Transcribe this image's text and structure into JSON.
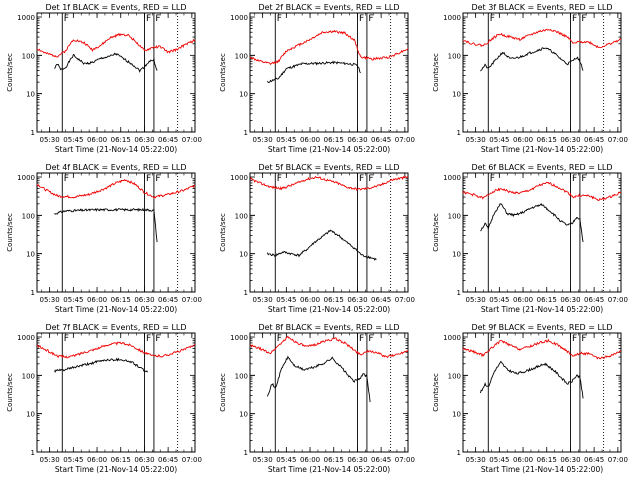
{
  "chart_data": [
    {
      "type": "line",
      "title": "Det 1f BLACK = Events, RED = LLD",
      "flag": "F",
      "xlabel": "Start Time (21-Nov-14 05:22:00)",
      "ylabel": "Counts/sec",
      "x_ticks": [
        "05:30",
        "05:45",
        "06:00",
        "06:15",
        "06:30",
        "06:45",
        "07:00"
      ],
      "y_ticks": [
        "1",
        "10",
        "100",
        "1000"
      ],
      "ylim": [
        1,
        1000
      ],
      "xlim": [
        "05:22",
        "07:02"
      ],
      "solid_markers": [
        "05:38",
        "06:30",
        "06:36"
      ],
      "dotted_markers": [
        "06:51"
      ],
      "series": [
        {
          "name": "Events",
          "color": "#000000",
          "x": [
            "05:33",
            "05:35",
            "05:37",
            "05:40",
            "05:45",
            "05:52",
            "05:57",
            "06:03",
            "06:07",
            "06:12",
            "06:17",
            "06:22",
            "06:27",
            "06:30",
            "06:33",
            "06:36",
            "06:38"
          ],
          "values": [
            45,
            60,
            42,
            48,
            100,
            60,
            65,
            85,
            90,
            110,
            80,
            60,
            40,
            50,
            70,
            75,
            40
          ]
        },
        {
          "name": "LLD",
          "color": "#ee0000",
          "x": [
            "05:22",
            "05:28",
            "05:35",
            "05:40",
            "05:45",
            "05:52",
            "05:57",
            "06:03",
            "06:08",
            "06:15",
            "06:20",
            "06:25",
            "06:30",
            "06:35",
            "06:40",
            "06:45",
            "06:50",
            "06:57",
            "07:02"
          ],
          "values": [
            150,
            110,
            95,
            130,
            260,
            210,
            140,
            190,
            280,
            360,
            330,
            220,
            130,
            160,
            170,
            120,
            140,
            200,
            250
          ]
        }
      ]
    },
    {
      "type": "line",
      "title": "Det 2f BLACK = Events, RED = LLD",
      "flag": "F",
      "xlabel": "Start Time (21-Nov-14 05:22:00)",
      "ylabel": "Counts/sec",
      "x_ticks": [
        "05:30",
        "05:45",
        "06:00",
        "06:15",
        "06:30",
        "06:45",
        "07:00"
      ],
      "y_ticks": [
        "1",
        "10",
        "100",
        "1000"
      ],
      "ylim": [
        1,
        1000
      ],
      "xlim": [
        "05:22",
        "07:02"
      ],
      "solid_markers": [
        "05:38",
        "06:30",
        "06:36"
      ],
      "dotted_markers": [
        "06:51"
      ],
      "series": [
        {
          "name": "Events",
          "color": "#000000",
          "x": [
            "05:33",
            "05:40",
            "05:45",
            "05:55",
            "06:05",
            "06:15",
            "06:25",
            "06:30",
            "06:32"
          ],
          "values": [
            20,
            25,
            45,
            60,
            62,
            65,
            60,
            55,
            35
          ]
        },
        {
          "name": "LLD",
          "color": "#ee0000",
          "x": [
            "05:22",
            "05:28",
            "05:35",
            "05:40",
            "05:45",
            "05:52",
            "06:00",
            "06:08",
            "06:15",
            "06:22",
            "06:28",
            "06:32",
            "06:40",
            "06:50",
            "06:57",
            "07:02"
          ],
          "values": [
            90,
            70,
            60,
            70,
            130,
            180,
            260,
            400,
            420,
            380,
            250,
            90,
            80,
            90,
            120,
            150
          ]
        }
      ]
    },
    {
      "type": "line",
      "title": "Det 3f BLACK = Events, RED = LLD",
      "flag": "F",
      "xlabel": "Start Time (21-Nov-14 05:22:00)",
      "ylabel": "Counts/sec",
      "x_ticks": [
        "05:30",
        "05:45",
        "06:00",
        "06:15",
        "06:30",
        "06:45",
        "07:00"
      ],
      "y_ticks": [
        "1",
        "10",
        "100",
        "1000"
      ],
      "ylim": [
        1,
        1000
      ],
      "xlim": [
        "05:22",
        "07:02"
      ],
      "solid_markers": [
        "05:38",
        "06:30",
        "06:36"
      ],
      "dotted_markers": [
        "06:51"
      ],
      "series": [
        {
          "name": "Events",
          "color": "#000000",
          "x": [
            "05:33",
            "05:36",
            "05:38",
            "05:42",
            "05:47",
            "05:52",
            "05:58",
            "06:03",
            "06:08",
            "06:14",
            "06:19",
            "06:24",
            "06:28",
            "06:31",
            "06:34",
            "06:36",
            "06:38"
          ],
          "values": [
            40,
            55,
            45,
            70,
            120,
            80,
            90,
            110,
            130,
            160,
            120,
            80,
            60,
            70,
            90,
            70,
            40
          ]
        },
        {
          "name": "LLD",
          "color": "#ee0000",
          "x": [
            "05:22",
            "05:28",
            "05:35",
            "05:40",
            "05:45",
            "05:52",
            "05:58",
            "06:03",
            "06:10",
            "06:17",
            "06:22",
            "06:28",
            "06:32",
            "06:36",
            "06:42",
            "06:48",
            "06:55",
            "07:02"
          ],
          "values": [
            250,
            200,
            180,
            260,
            360,
            300,
            260,
            320,
            420,
            480,
            400,
            300,
            200,
            230,
            220,
            160,
            200,
            260
          ]
        }
      ]
    },
    {
      "type": "line",
      "title": "Det 4f BLACK = Events, RED = LLD",
      "flag": "F",
      "xlabel": "Start Time (21-Nov-14 05:22:00)",
      "ylabel": "Counts/sec",
      "x_ticks": [
        "05:30",
        "05:45",
        "06:00",
        "06:15",
        "06:30",
        "06:45",
        "07:00"
      ],
      "y_ticks": [
        "1",
        "10",
        "100",
        "1000"
      ],
      "ylim": [
        1,
        1000
      ],
      "xlim": [
        "05:22",
        "07:02"
      ],
      "solid_markers": [
        "05:38",
        "06:30",
        "06:36"
      ],
      "dotted_markers": [
        "06:51"
      ],
      "series": [
        {
          "name": "Events",
          "color": "#000000",
          "x": [
            "05:33",
            "05:40",
            "05:50",
            "06:00",
            "06:10",
            "06:20",
            "06:30",
            "06:36",
            "06:38"
          ],
          "values": [
            110,
            130,
            135,
            140,
            140,
            140,
            140,
            135,
            20
          ]
        },
        {
          "name": "LLD",
          "color": "#ee0000",
          "x": [
            "05:22",
            "05:28",
            "05:35",
            "05:45",
            "05:55",
            "06:05",
            "06:12",
            "06:18",
            "06:24",
            "06:30",
            "06:36",
            "06:45",
            "06:55",
            "07:02"
          ],
          "values": [
            650,
            450,
            320,
            300,
            350,
            500,
            700,
            850,
            650,
            400,
            300,
            350,
            450,
            600
          ]
        }
      ]
    },
    {
      "type": "line",
      "title": "Det 5f BLACK = Events, RED = LLD",
      "flag": "F",
      "xlabel": "Start Time (21-Nov-14 05:22:00)",
      "ylabel": "Counts/sec",
      "x_ticks": [
        "05:30",
        "05:45",
        "06:00",
        "06:15",
        "06:30",
        "06:45",
        "07:00"
      ],
      "y_ticks": [
        "1",
        "10",
        "100",
        "1000"
      ],
      "ylim": [
        1,
        1000
      ],
      "xlim": [
        "05:22",
        "07:02"
      ],
      "solid_markers": [
        "05:38",
        "06:30",
        "06:36"
      ],
      "dotted_markers": [
        "06:51"
      ],
      "series": [
        {
          "name": "Events",
          "color": "#000000",
          "x": [
            "05:33",
            "05:38",
            "05:43",
            "05:48",
            "05:53",
            "05:58",
            "06:03",
            "06:08",
            "06:13",
            "06:18",
            "06:23",
            "06:28",
            "06:33",
            "06:38",
            "06:42"
          ],
          "values": [
            10,
            9,
            11,
            10,
            9,
            13,
            20,
            28,
            40,
            30,
            20,
            14,
            9,
            8,
            7
          ]
        },
        {
          "name": "LLD",
          "color": "#ee0000",
          "x": [
            "05:22",
            "05:28",
            "05:35",
            "05:42",
            "05:50",
            "05:57",
            "06:04",
            "06:10",
            "06:17",
            "06:23",
            "06:30",
            "06:36",
            "06:44",
            "06:52",
            "07:02"
          ],
          "values": [
            900,
            700,
            550,
            500,
            650,
            850,
            1000,
            850,
            700,
            550,
            480,
            500,
            600,
            850,
            1000
          ]
        }
      ]
    },
    {
      "type": "line",
      "title": "Det 6f BLACK = Events, RED = LLD",
      "flag": "F",
      "xlabel": "Start Time (21-Nov-14 05:22:00)",
      "ylabel": "Counts/sec",
      "x_ticks": [
        "05:30",
        "05:45",
        "06:00",
        "06:15",
        "06:30",
        "06:45",
        "07:00"
      ],
      "y_ticks": [
        "1",
        "10",
        "100",
        "1000"
      ],
      "ylim": [
        1,
        1000
      ],
      "xlim": [
        "05:22",
        "07:02"
      ],
      "solid_markers": [
        "05:38",
        "06:30",
        "06:36"
      ],
      "dotted_markers": [
        "06:51"
      ],
      "series": [
        {
          "name": "Events",
          "color": "#000000",
          "x": [
            "05:33",
            "05:36",
            "05:38",
            "05:42",
            "05:46",
            "05:50",
            "05:55",
            "06:00",
            "06:06",
            "06:12",
            "06:18",
            "06:24",
            "06:28",
            "06:31",
            "06:34",
            "06:36",
            "06:38"
          ],
          "values": [
            40,
            60,
            45,
            120,
            200,
            110,
            100,
            120,
            160,
            190,
            120,
            70,
            55,
            60,
            90,
            80,
            20
          ]
        },
        {
          "name": "LLD",
          "color": "#ee0000",
          "x": [
            "05:22",
            "05:28",
            "05:35",
            "05:40",
            "05:46",
            "05:52",
            "05:58",
            "06:04",
            "06:10",
            "06:16",
            "06:22",
            "06:28",
            "06:32",
            "06:36",
            "06:42",
            "06:48",
            "06:55",
            "07:02"
          ],
          "values": [
            400,
            350,
            280,
            400,
            500,
            400,
            380,
            450,
            600,
            700,
            550,
            400,
            300,
            330,
            320,
            250,
            300,
            400
          ]
        }
      ]
    },
    {
      "type": "line",
      "title": "Det 7f BLACK = Events, RED = LLD",
      "flag": "F",
      "xlabel": "Start Time (21-Nov-14 05:22:00)",
      "ylabel": "Counts/sec",
      "x_ticks": [
        "05:30",
        "05:45",
        "06:00",
        "06:15",
        "06:30",
        "06:45",
        "07:00"
      ],
      "y_ticks": [
        "1",
        "10",
        "100",
        "1000"
      ],
      "ylim": [
        1,
        1000
      ],
      "xlim": [
        "05:22",
        "07:02"
      ],
      "solid_markers": [
        "05:38",
        "06:30",
        "06:36"
      ],
      "dotted_markers": [
        "06:51"
      ],
      "series": [
        {
          "name": "Events",
          "color": "#000000",
          "x": [
            "05:33",
            "05:40",
            "05:45",
            "05:55",
            "06:05",
            "06:15",
            "06:22",
            "06:28",
            "06:32"
          ],
          "values": [
            130,
            140,
            160,
            200,
            250,
            260,
            220,
            150,
            120
          ]
        },
        {
          "name": "LLD",
          "color": "#ee0000",
          "x": [
            "05:22",
            "05:28",
            "05:35",
            "05:40",
            "05:45",
            "05:52",
            "06:00",
            "06:08",
            "06:15",
            "06:22",
            "06:28",
            "06:35",
            "06:42",
            "06:50",
            "06:57",
            "07:02"
          ],
          "values": [
            600,
            450,
            320,
            300,
            320,
            400,
            500,
            650,
            700,
            600,
            430,
            320,
            320,
            400,
            500,
            650
          ]
        }
      ]
    },
    {
      "type": "line",
      "title": "Det 8f BLACK = Events, RED = LLD",
      "flag": "F",
      "xlabel": "Start Time (21-Nov-14 05:22:00)",
      "ylabel": "Counts/sec",
      "x_ticks": [
        "05:30",
        "05:45",
        "06:00",
        "06:15",
        "06:30",
        "06:45",
        "07:00"
      ],
      "y_ticks": [
        "1",
        "10",
        "100",
        "1000"
      ],
      "ylim": [
        1,
        1000
      ],
      "xlim": [
        "05:22",
        "07:02"
      ],
      "solid_markers": [
        "05:38",
        "06:30",
        "06:36"
      ],
      "dotted_markers": [
        "06:51"
      ],
      "series": [
        {
          "name": "Events",
          "color": "#000000",
          "x": [
            "05:33",
            "05:36",
            "05:38",
            "05:42",
            "05:46",
            "05:50",
            "05:56",
            "06:02",
            "06:08",
            "06:14",
            "06:20",
            "06:25",
            "06:28",
            "06:31",
            "06:34",
            "06:36",
            "06:38"
          ],
          "values": [
            30,
            60,
            45,
            150,
            300,
            180,
            140,
            160,
            200,
            280,
            160,
            90,
            70,
            80,
            110,
            90,
            20
          ]
        },
        {
          "name": "LLD",
          "color": "#ee0000",
          "x": [
            "05:22",
            "05:28",
            "05:35",
            "05:40",
            "05:46",
            "05:52",
            "05:58",
            "06:04",
            "06:10",
            "06:16",
            "06:22",
            "06:28",
            "06:32",
            "06:36",
            "06:42",
            "06:48",
            "06:55",
            "07:02"
          ],
          "values": [
            600,
            500,
            380,
            600,
            1000,
            700,
            550,
            650,
            800,
            900,
            700,
            450,
            350,
            420,
            400,
            300,
            350,
            450
          ]
        }
      ]
    },
    {
      "type": "line",
      "title": "Det 9f BLACK = Events, RED = LLD",
      "flag": "F",
      "xlabel": "Start Time (21-Nov-14 05:22:00)",
      "ylabel": "Counts/sec",
      "x_ticks": [
        "05:30",
        "05:45",
        "06:00",
        "06:15",
        "06:30",
        "06:45",
        "07:00"
      ],
      "y_ticks": [
        "1",
        "10",
        "100",
        "1000"
      ],
      "ylim": [
        1,
        1000
      ],
      "xlim": [
        "05:22",
        "07:02"
      ],
      "solid_markers": [
        "05:38",
        "06:30",
        "06:36"
      ],
      "dotted_markers": [
        "06:51"
      ],
      "series": [
        {
          "name": "Events",
          "color": "#000000",
          "x": [
            "05:33",
            "05:36",
            "05:38",
            "05:42",
            "05:46",
            "05:50",
            "05:56",
            "06:02",
            "06:08",
            "06:14",
            "06:20",
            "06:25",
            "06:28",
            "06:31",
            "06:34",
            "06:36",
            "06:38"
          ],
          "values": [
            35,
            60,
            50,
            130,
            220,
            140,
            110,
            130,
            160,
            200,
            130,
            80,
            60,
            70,
            100,
            90,
            25
          ]
        },
        {
          "name": "LLD",
          "color": "#ee0000",
          "x": [
            "05:22",
            "05:28",
            "05:35",
            "05:40",
            "05:46",
            "05:52",
            "05:58",
            "06:04",
            "06:10",
            "06:16",
            "06:22",
            "06:28",
            "06:32",
            "06:36",
            "06:42",
            "06:48",
            "06:55",
            "07:02"
          ],
          "values": [
            500,
            420,
            330,
            520,
            800,
            600,
            480,
            560,
            700,
            800,
            620,
            420,
            320,
            380,
            360,
            270,
            320,
            420
          ]
        }
      ]
    }
  ]
}
